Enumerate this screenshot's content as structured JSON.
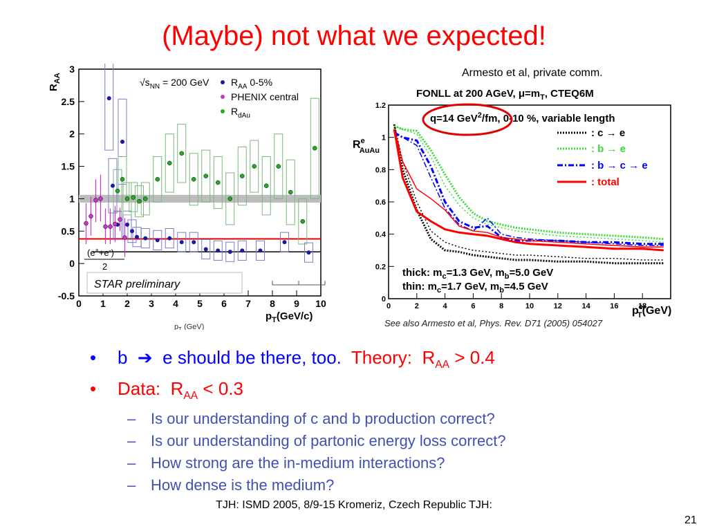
{
  "title": "(Maybe) not what we expected!",
  "left_chart": {
    "ylabel": "R",
    "ylabel_sub": "AA",
    "xlabel": "p",
    "xlabel_sub": "T",
    "xlabel_unit": "(GeV/c)",
    "legend_energy": "√s",
    "legend_energy_sub": "NN",
    "legend_energy_val": " = 200 GeV",
    "legend_raa": "R",
    "legend_raa_sub": "AA",
    "legend_raa_suffix": " 0-5%",
    "legend_phenix": "PHENIX central",
    "legend_rdau": "R",
    "legend_rdau_sub": "dAu",
    "annot_frac": "(e",
    "annot_frac_sup1": "+",
    "annot_frac_mid": "+e",
    "annot_frac_sup2": "-",
    "annot_frac_end": ")",
    "annot_two": "2",
    "star_label": "STAR preliminary",
    "behind_label": "p",
    "behind_label_sub": "T",
    "behind_label_unit": " (GeV)"
  },
  "right_chart": {
    "header": "Armesto et al, private comm.",
    "title": "FONLL at 200 AGeV, μ=m",
    "title_sub": "T",
    "title_end": ", CTEQ6M",
    "qhat_line": "q=14 GeV",
    "qhat_sup": "2",
    "qhat_end": "/fm, 0-10 %, variable length",
    "ylabel": "R",
    "ylabel_sup": "e",
    "ylabel_sub": "AuAu",
    "xlabel": "p",
    "xlabel_sup": "e",
    "xlabel_sub": "T",
    "xlabel_unit": "(GeV)",
    "legend_ce": ": c → e",
    "legend_be": ": b → e",
    "legend_bce": ": b → c → e",
    "legend_total": ": total",
    "thick_label": "thick: m",
    "thick_sub1": "c",
    "thick_mid": "=1.3 GeV, m",
    "thick_sub2": "b",
    "thick_end": "=5.0 GeV",
    "thin_label": "thin: m",
    "thin_sub1": "c",
    "thin_mid": "=1.7 GeV, m",
    "thin_sub2": "b",
    "thin_end": "=4.5 GeV"
  },
  "refs": "See also Armesto et al, Phys. Rev. D71 (2005) 054027",
  "bullets": {
    "b1_dot": "•",
    "b1_text": "b  ➔  e should be there, too.",
    "b1_theory": "  Theory:  R",
    "b1_theory_sub": "AA",
    "b1_theory_end": " > 0.4",
    "b2_dot": "•",
    "b2_text": "Data:  R",
    "b2_sub": "AA",
    "b2_end": " < 0.3",
    "dash": "–",
    "sub_items": [
      "Is our understanding of c and b production correct?",
      "Is our understanding of partonic energy loss correct?",
      "How strong are the in-medium interactions?",
      "How dense is the medium?"
    ]
  },
  "footer": "TJH: ISMD 2005, 8/9-15 Kromeriz, Czech Republic TJH:",
  "page_number": "21",
  "colors": {
    "title": "#ff0000",
    "bullet_blue": "#0000ff",
    "bullet_red": "#ff0000",
    "sub_blue": "#3f51b5",
    "star_blue": "#1a1aa0",
    "phenix_magenta": "#cc33cc",
    "rdau_green": "#22aa22",
    "fonll_ce": "#000000",
    "fonll_be": "#33dd33",
    "fonll_bce": "#0000ff",
    "fonll_total": "#ff0000"
  },
  "chart_data": [
    {
      "type": "scatter",
      "title": "",
      "xlabel": "pT (GeV/c)",
      "ylabel": "RAA",
      "xlim": [
        0,
        10
      ],
      "ylim": [
        -0.5,
        3
      ],
      "xticks": [
        "0",
        "1",
        "2",
        "3",
        "4",
        "5",
        "6",
        "7",
        "8",
        "9",
        "10"
      ],
      "yticks": [
        "-0.5",
        "0",
        "0.5",
        "1",
        "1.5",
        "2",
        "2.5",
        "3"
      ],
      "series": [
        {
          "name": "RAA 0-5%",
          "x": [
            1.25,
            1.4,
            1.6,
            1.8,
            2.0,
            2.2,
            2.4,
            2.75,
            3.25,
            3.75,
            4.25,
            4.75,
            5.25,
            5.75,
            6.25,
            6.75,
            7.5,
            8.5,
            9.5
          ],
          "y": [
            2.55,
            1.2,
            0.6,
            1.88,
            0.6,
            0.5,
            0.41,
            0.39,
            0.36,
            0.39,
            0.33,
            0.33,
            0.22,
            0.2,
            0.18,
            0.2,
            0.2,
            0.33,
            0.17
          ]
        },
        {
          "name": "PHENIX central",
          "x": [
            0.3,
            0.5,
            0.7,
            0.9,
            1.1,
            1.3,
            1.5,
            1.7,
            1.9
          ],
          "y": [
            0.62,
            0.73,
            0.98,
            1.0,
            0.57,
            0.57,
            0.61,
            0.68,
            0.4
          ],
          "ylow": [
            0.3,
            0.43,
            0.64,
            0.65,
            0.3,
            0.3,
            0.33,
            0.5,
            0.1
          ],
          "yhigh": [
            0.93,
            1.03,
            1.3,
            1.37,
            0.85,
            0.85,
            0.89,
            0.86,
            0.7
          ]
        },
        {
          "name": "RdAu",
          "x": [
            1.6,
            1.8,
            2.0,
            2.25,
            2.5,
            2.75,
            3.25,
            3.75,
            4.25,
            4.75,
            5.25,
            5.75,
            6.25,
            6.75,
            7.25,
            7.75,
            8.25,
            8.75,
            9.25,
            9.75
          ],
          "y": [
            1.12,
            1.3,
            1.0,
            1.02,
            0.96,
            1.0,
            1.3,
            1.55,
            1.7,
            1.3,
            1.35,
            1.25,
            1.0,
            1.35,
            1.5,
            1.2,
            1.5,
            1.1,
            0.65,
            1.78
          ],
          "ylow": [
            0.8,
            0.95,
            0.75,
            0.8,
            0.72,
            0.75,
            0.95,
            1.1,
            1.25,
            0.9,
            0.95,
            0.85,
            0.6,
            0.9,
            1.1,
            0.75,
            1.0,
            0.6,
            0.3,
            1.0
          ],
          "yhigh": [
            1.45,
            1.65,
            1.25,
            1.25,
            1.2,
            1.25,
            1.65,
            2.0,
            2.15,
            1.7,
            1.75,
            1.65,
            1.4,
            1.8,
            1.9,
            1.65,
            2.0,
            1.6,
            1.0,
            2.55
          ]
        }
      ],
      "reference_lines": [
        {
          "name": "red line",
          "y": 0.38
        },
        {
          "name": "black line",
          "y": 0.18
        },
        {
          "name": "gray band",
          "y": 1.0
        }
      ]
    },
    {
      "type": "line",
      "title": "FONLL at 200 AGeV, μ=mT, CTEQ6M",
      "xlabel": "pT e (GeV)",
      "ylabel": "R e AuAu",
      "xlim": [
        0,
        20
      ],
      "ylim": [
        0,
        1.2
      ],
      "xticks": [
        "0",
        "2",
        "4",
        "6",
        "8",
        "10",
        "12",
        "14",
        "16",
        "18"
      ],
      "yticks": [
        "0",
        "0.2",
        "0.4",
        "0.6",
        "0.8",
        "1",
        "1.2"
      ],
      "series": [
        {
          "name": "c → e",
          "style": "thick dotted",
          "x": [
            0.4,
            1,
            2,
            3,
            4,
            5,
            6,
            7,
            8,
            9,
            10,
            12,
            14,
            16,
            18,
            19.5
          ],
          "y": [
            1.08,
            0.8,
            0.55,
            0.37,
            0.3,
            0.29,
            0.27,
            0.26,
            0.25,
            0.24,
            0.24,
            0.23,
            0.23,
            0.22,
            0.22,
            0.22
          ]
        },
        {
          "name": "c → e (thin)",
          "style": "thin dotted",
          "x": [
            0.4,
            1,
            2,
            3,
            4,
            5,
            6,
            7,
            8,
            9,
            10,
            12,
            14,
            16,
            18,
            19.5
          ],
          "y": [
            1.08,
            0.85,
            0.6,
            0.42,
            0.35,
            0.32,
            0.3,
            0.29,
            0.28,
            0.27,
            0.27,
            0.26,
            0.25,
            0.25,
            0.24,
            0.24
          ]
        },
        {
          "name": "b → e",
          "style": "thick dotted",
          "x": [
            0.4,
            1,
            2,
            3,
            4,
            5,
            6,
            7,
            8,
            9,
            10,
            12,
            14,
            16,
            18,
            19.5
          ],
          "y": [
            1.07,
            1.05,
            1.04,
            0.92,
            0.77,
            0.63,
            0.53,
            0.48,
            0.46,
            0.44,
            0.43,
            0.41,
            0.4,
            0.39,
            0.38,
            0.37
          ]
        },
        {
          "name": "b → e (thin)",
          "style": "thin dotted",
          "x": [
            0.4,
            1,
            2,
            3,
            4,
            5,
            6,
            7,
            8,
            9,
            10,
            12,
            14,
            16,
            18,
            19.5
          ],
          "y": [
            1.07,
            1.05,
            1.02,
            0.88,
            0.7,
            0.58,
            0.5,
            0.46,
            0.44,
            0.42,
            0.41,
            0.39,
            0.38,
            0.37,
            0.36,
            0.35
          ]
        },
        {
          "name": "b → c → e",
          "style": "thick dash-dot",
          "x": [
            0.4,
            1,
            2,
            3,
            4,
            5,
            6,
            7,
            8,
            9,
            10,
            12,
            14,
            16,
            18,
            19.5
          ],
          "y": [
            1.03,
            1.0,
            0.98,
            0.82,
            0.6,
            0.48,
            0.44,
            0.45,
            0.38,
            0.36,
            0.36,
            0.36,
            0.35,
            0.35,
            0.34,
            0.34
          ]
        },
        {
          "name": "b → c → e (thin)",
          "style": "thin dash-dot",
          "x": [
            0.4,
            1,
            2,
            3,
            4,
            5,
            6,
            7,
            8,
            9,
            10,
            12,
            14,
            16,
            18,
            19.5
          ],
          "y": [
            1.03,
            1.0,
            0.95,
            0.75,
            0.56,
            0.46,
            0.42,
            0.5,
            0.4,
            0.38,
            0.37,
            0.36,
            0.35,
            0.34,
            0.33,
            0.33
          ]
        },
        {
          "name": "total",
          "style": "thick solid",
          "x": [
            0.4,
            1,
            2,
            3,
            4,
            5,
            6,
            7,
            8,
            9,
            10,
            12,
            14,
            16,
            18,
            19.5
          ],
          "y": [
            1.05,
            0.75,
            0.54,
            0.48,
            0.43,
            0.41,
            0.4,
            0.39,
            0.37,
            0.35,
            0.34,
            0.33,
            0.32,
            0.31,
            0.31,
            0.3
          ]
        },
        {
          "name": "total (thin)",
          "style": "thin solid",
          "x": [
            0.4,
            1,
            2,
            3,
            4,
            5,
            6,
            7,
            8,
            9,
            10,
            12,
            14,
            16,
            18,
            19.5
          ],
          "y": [
            1.05,
            0.85,
            0.68,
            0.62,
            0.55,
            0.45,
            0.42,
            0.41,
            0.38,
            0.37,
            0.36,
            0.35,
            0.34,
            0.33,
            0.32,
            0.32
          ]
        }
      ]
    }
  ]
}
